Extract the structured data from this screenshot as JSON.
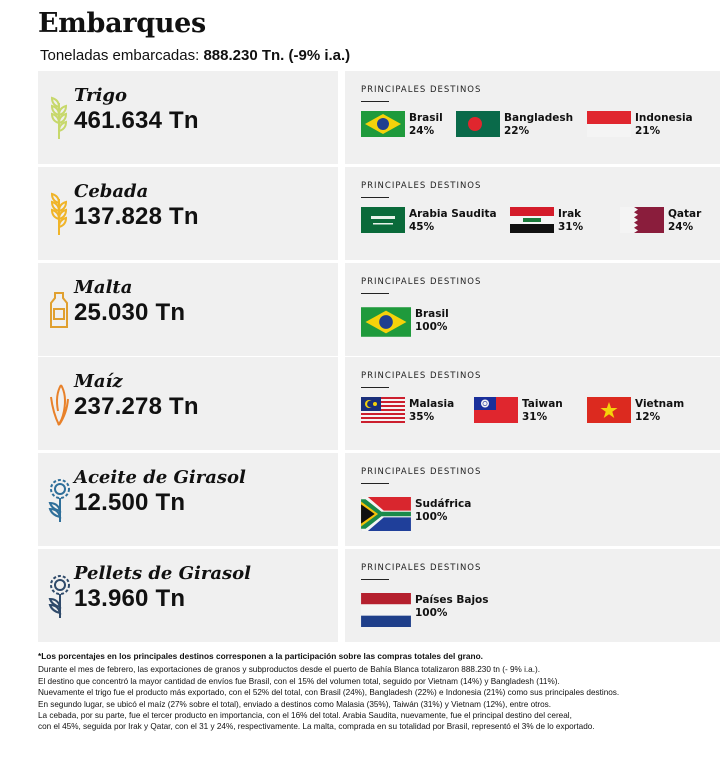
{
  "header": {
    "title": "Embarques",
    "subtitle_prefix": "Toneladas embarcadas: ",
    "subtitle_value": "888.230 Tn. (-9% i.a.)"
  },
  "dest_label": "PRINCIPALES DESTINOS",
  "products": [
    {
      "name": "Trigo",
      "value": "461.634 Tn",
      "icon": "wheat-icon",
      "color": "#c7d86b",
      "destinations": [
        {
          "name": "Brasil",
          "pct": "24%",
          "flag": "brazil"
        },
        {
          "name": "Bangladesh",
          "pct": "22%",
          "flag": "bangladesh"
        },
        {
          "name": "Indonesia",
          "pct": "21%",
          "flag": "indonesia"
        }
      ]
    },
    {
      "name": "Cebada",
      "value": "137.828 Tn",
      "icon": "barley-icon",
      "color": "#f0b429",
      "destinations": [
        {
          "name": "Arabia Saudita",
          "pct": "45%",
          "flag": "saudi-arabia"
        },
        {
          "name": "Irak",
          "pct": "31%",
          "flag": "iraq"
        },
        {
          "name": "Qatar",
          "pct": "24%",
          "flag": "qatar"
        }
      ]
    },
    {
      "name": "Malta",
      "value": "25.030 Tn",
      "icon": "malt-sack-icon",
      "color": "#e0a030",
      "destinations": [
        {
          "name": "Brasil",
          "pct": "100%",
          "flag": "brazil"
        }
      ]
    },
    {
      "name": "Maíz",
      "value": "237.278 Tn",
      "icon": "corn-icon",
      "color": "#e8812a",
      "destinations": [
        {
          "name": "Malasia",
          "pct": "35%",
          "flag": "malaysia"
        },
        {
          "name": "Taiwan",
          "pct": "31%",
          "flag": "taiwan"
        },
        {
          "name": "Vietnam",
          "pct": "12%",
          "flag": "vietnam"
        }
      ]
    },
    {
      "name": "Aceite de Girasol",
      "value": "12.500 Tn",
      "icon": "sunflower-icon",
      "color": "#2f6f9a",
      "destinations": [
        {
          "name": "Sudáfrica",
          "pct": "100%",
          "flag": "south-africa"
        }
      ]
    },
    {
      "name": "Pellets de Girasol",
      "value": "13.960 Tn",
      "icon": "sunflower-icon",
      "color": "#2f4a6a",
      "destinations": [
        {
          "name": "Países Bajos",
          "pct": "100%",
          "flag": "netherlands"
        }
      ]
    }
  ],
  "footer": {
    "note": "*Los porcentajes en los principales destinos corresponen a la participación sobre las compras totales del grano.",
    "lines": [
      "Durante el mes de febrero, las exportaciones de granos y subproductos desde el puerto de Bahía Blanca totalizaron 888.230 tn (- 9% i.a.).",
      "El destino  que concentró la mayor cantidad de envíos fue Brasil, con el 15% del volumen total, seguido por Vietnam (14%) y Bangladesh (11%).",
      "Nuevamente el trigo fue el producto más exportado, con el 52% del total, con Brasil (24%), Bangladesh (22%) e Indonesia (21%) como sus principales destinos.",
      "En segundo lugar, se ubicó el maíz (27% sobre el total), enviado a destinos como Malasia (35%), Taiwán (31%) y Vietnam (12%), entre otros.",
      "La cebada, por su parte, fue el tercer producto en importancia, con el 16% del total. Arabia Saudita, nuevamente, fue el principal destino del cereal,",
      "con el 45%, seguida por Irak y Qatar, con el 31 y 24%, respectivamente. La malta, comprada en su totalidad por Brasil, representó el 3% de lo exportado."
    ]
  }
}
